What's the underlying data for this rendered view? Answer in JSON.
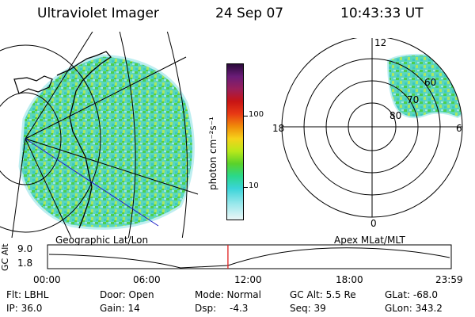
{
  "header": {
    "instrument": "Ultraviolet Imager",
    "date": "24 Sep 07",
    "time": "10:43:33 UT"
  },
  "colorbar": {
    "unit": "photon cm⁻²s⁻¹",
    "ticks": [
      "100",
      "10"
    ],
    "colors": [
      "#2a0a3a",
      "#6b1c78",
      "#9a1f5a",
      "#c81414",
      "#e83a14",
      "#f08a0a",
      "#f6d21a",
      "#b8e81a",
      "#5ad22a",
      "#2ad88a",
      "#3ad4d8",
      "#9ae8ec",
      "#eaf6f6"
    ]
  },
  "maps": {
    "left_label": "Geographic Lat/Lon",
    "right_label": "Apex MLat/MLT",
    "polar_hours": [
      "12",
      "18",
      "6",
      "0"
    ],
    "polar_lats": [
      "60",
      "70",
      "80"
    ]
  },
  "timeline": {
    "ylabel": "GC Alt",
    "yticks": [
      "9.0",
      "1.8"
    ],
    "xticks": [
      "00:00",
      "06:00",
      "12:00",
      "18:00",
      "23:59"
    ],
    "marker_fraction": 0.4469
  },
  "status": {
    "flt": "Flt: LBHL",
    "ip": "IP: 36.0",
    "door": "Door: Open",
    "gain": "Gain: 14",
    "mode": "Mode: Normal",
    "dsp_label": "Dsp:",
    "dsp_value": "-4.3",
    "gc_alt": "GC Alt: 5.5 Re",
    "seq": "Seq: 39",
    "glat": "GLat: -68.0",
    "glon": "GLon: 343.2"
  }
}
